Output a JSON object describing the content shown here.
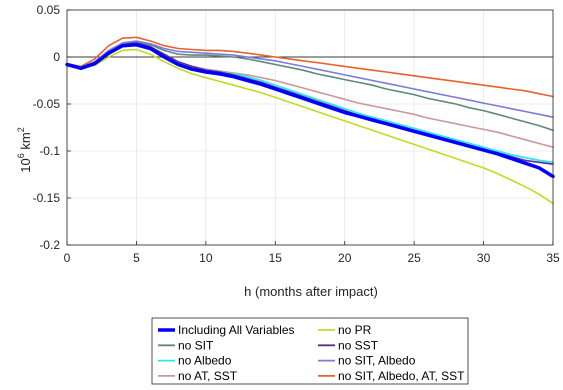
{
  "chart_data": {
    "type": "line",
    "title": "",
    "xlabel": "h (months after impact)",
    "ylabel_base": "10",
    "ylabel_exp": "6",
    "ylabel_unit": " km",
    "ylabel_unit_exp": "2",
    "xlim": [
      0,
      35
    ],
    "ylim": [
      -0.2,
      0.05
    ],
    "xticks": [
      0,
      5,
      10,
      15,
      20,
      25,
      30,
      35
    ],
    "xtick_labels": [
      "0",
      "5",
      "10",
      "15",
      "20",
      "25",
      "30",
      "35"
    ],
    "yticks": [
      0.05,
      0,
      -0.05,
      -0.1,
      -0.15,
      -0.2
    ],
    "ytick_labels": [
      "0.05",
      "0",
      "-0.05",
      "-0.1",
      "-0.15",
      "-0.2"
    ],
    "grid": true,
    "zero_line": true,
    "legend_position": "bottom-center",
    "x": [
      0,
      1,
      2,
      3,
      4,
      5,
      6,
      7,
      8,
      9,
      10,
      11,
      12,
      13,
      14,
      15,
      16,
      17,
      18,
      19,
      20,
      21,
      22,
      23,
      24,
      25,
      26,
      27,
      28,
      29,
      30,
      31,
      32,
      33,
      34,
      35
    ],
    "series": [
      {
        "name": "Including All Variables",
        "color": "#0000ff",
        "width": 3.5,
        "values": [
          -0.008,
          -0.012,
          -0.007,
          0.004,
          0.012,
          0.013,
          0.009,
          0.0,
          -0.008,
          -0.013,
          -0.016,
          -0.018,
          -0.021,
          -0.025,
          -0.029,
          -0.034,
          -0.039,
          -0.044,
          -0.049,
          -0.054,
          -0.059,
          -0.063,
          -0.067,
          -0.071,
          -0.075,
          -0.079,
          -0.083,
          -0.087,
          -0.091,
          -0.095,
          -0.099,
          -0.103,
          -0.108,
          -0.113,
          -0.118,
          -0.127
        ]
      },
      {
        "name": "no PR",
        "color": "#c7d91e",
        "width": 1.6,
        "values": [
          -0.009,
          -0.012,
          -0.009,
          0.0,
          0.007,
          0.008,
          0.003,
          -0.005,
          -0.012,
          -0.018,
          -0.022,
          -0.026,
          -0.03,
          -0.034,
          -0.038,
          -0.043,
          -0.048,
          -0.053,
          -0.058,
          -0.063,
          -0.068,
          -0.073,
          -0.078,
          -0.083,
          -0.088,
          -0.093,
          -0.098,
          -0.103,
          -0.108,
          -0.113,
          -0.118,
          -0.124,
          -0.131,
          -0.138,
          -0.146,
          -0.156
        ]
      },
      {
        "name": "no SIT",
        "color": "#5e8a7e",
        "width": 1.6,
        "values": [
          -0.008,
          -0.011,
          -0.005,
          0.006,
          0.014,
          0.016,
          0.013,
          0.007,
          0.003,
          0.002,
          0.002,
          0.001,
          0.0,
          -0.002,
          -0.005,
          -0.008,
          -0.011,
          -0.014,
          -0.018,
          -0.021,
          -0.024,
          -0.027,
          -0.03,
          -0.034,
          -0.037,
          -0.04,
          -0.044,
          -0.047,
          -0.05,
          -0.054,
          -0.057,
          -0.061,
          -0.065,
          -0.069,
          -0.073,
          -0.078
        ]
      },
      {
        "name": "no SST",
        "color": "#5c2e91",
        "width": 1.6,
        "values": [
          -0.008,
          -0.011,
          -0.006,
          0.005,
          0.013,
          0.015,
          0.011,
          0.003,
          -0.005,
          -0.01,
          -0.014,
          -0.016,
          -0.019,
          -0.023,
          -0.027,
          -0.032,
          -0.037,
          -0.042,
          -0.047,
          -0.052,
          -0.057,
          -0.062,
          -0.066,
          -0.07,
          -0.074,
          -0.078,
          -0.082,
          -0.086,
          -0.09,
          -0.094,
          -0.098,
          -0.102,
          -0.106,
          -0.11,
          -0.112,
          -0.114
        ]
      },
      {
        "name": "no Albedo",
        "color": "#2ee6f0",
        "width": 1.8,
        "values": [
          -0.008,
          -0.011,
          -0.006,
          0.005,
          0.013,
          0.014,
          0.01,
          0.002,
          -0.006,
          -0.011,
          -0.014,
          -0.016,
          -0.018,
          -0.021,
          -0.025,
          -0.03,
          -0.035,
          -0.04,
          -0.045,
          -0.05,
          -0.055,
          -0.06,
          -0.064,
          -0.068,
          -0.072,
          -0.076,
          -0.08,
          -0.084,
          -0.088,
          -0.092,
          -0.096,
          -0.1,
          -0.104,
          -0.107,
          -0.11,
          -0.112
        ]
      },
      {
        "name": "no SIT, Albedo",
        "color": "#7b7bdb",
        "width": 1.6,
        "values": [
          -0.008,
          -0.011,
          -0.005,
          0.007,
          0.015,
          0.017,
          0.014,
          0.009,
          0.006,
          0.005,
          0.004,
          0.003,
          0.002,
          0.0,
          -0.002,
          -0.004,
          -0.007,
          -0.01,
          -0.013,
          -0.016,
          -0.019,
          -0.022,
          -0.025,
          -0.028,
          -0.031,
          -0.034,
          -0.037,
          -0.04,
          -0.043,
          -0.046,
          -0.049,
          -0.052,
          -0.055,
          -0.058,
          -0.061,
          -0.064
        ]
      },
      {
        "name": "no AT, SST",
        "color": "#cc9999",
        "width": 1.6,
        "values": [
          -0.008,
          -0.011,
          -0.006,
          0.005,
          0.012,
          0.014,
          0.01,
          0.002,
          -0.005,
          -0.01,
          -0.013,
          -0.015,
          -0.017,
          -0.019,
          -0.022,
          -0.025,
          -0.029,
          -0.033,
          -0.037,
          -0.041,
          -0.045,
          -0.049,
          -0.052,
          -0.055,
          -0.058,
          -0.061,
          -0.065,
          -0.068,
          -0.071,
          -0.074,
          -0.077,
          -0.08,
          -0.084,
          -0.088,
          -0.092,
          -0.096
        ]
      },
      {
        "name": "no SIT, Albedo, AT, SST",
        "color": "#e8622a",
        "width": 1.6,
        "values": [
          -0.007,
          -0.01,
          -0.002,
          0.012,
          0.02,
          0.021,
          0.017,
          0.012,
          0.009,
          0.008,
          0.007,
          0.007,
          0.006,
          0.004,
          0.002,
          0.0,
          -0.002,
          -0.004,
          -0.006,
          -0.008,
          -0.01,
          -0.012,
          -0.014,
          -0.016,
          -0.018,
          -0.02,
          -0.022,
          -0.024,
          -0.026,
          -0.028,
          -0.03,
          -0.032,
          -0.034,
          -0.036,
          -0.039,
          -0.042
        ]
      }
    ]
  }
}
